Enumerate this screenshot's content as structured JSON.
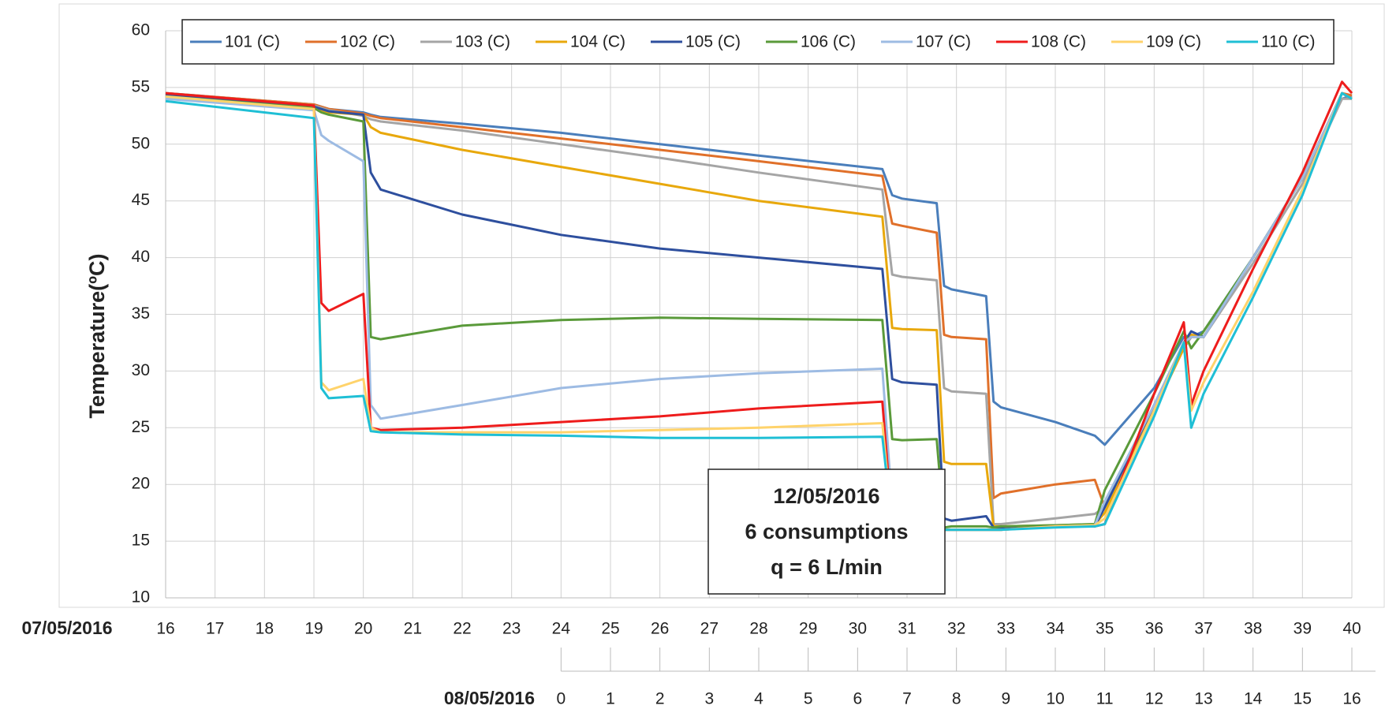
{
  "chart_data": {
    "type": "line",
    "ylabel": "Temperature(ºC)",
    "xlabel": "07/05/2016",
    "x2label": "08/05/2016",
    "annotation": [
      "12/05/2016",
      "6 consumptions",
      "q = 6 L/min"
    ],
    "x": [
      16,
      19,
      19.15,
      19.3,
      20,
      20.15,
      20.35,
      22,
      24,
      26,
      28,
      30.5,
      30.7,
      30.9,
      31.6,
      31.75,
      31.9,
      32.6,
      32.75,
      32.9,
      34,
      34.8,
      35,
      36,
      36.6,
      36.75,
      37,
      38,
      39,
      39.8,
      40
    ],
    "xlim": [
      16,
      40
    ],
    "xticks": [
      16,
      17,
      18,
      19,
      20,
      21,
      22,
      23,
      24,
      25,
      26,
      27,
      28,
      29,
      30,
      31,
      32,
      33,
      34,
      35,
      36,
      37,
      38,
      39,
      40
    ],
    "x2ticks": [
      {
        "value": 24,
        "label": "0"
      },
      {
        "value": 25,
        "label": "1"
      },
      {
        "value": 26,
        "label": "2"
      },
      {
        "value": 27,
        "label": "3"
      },
      {
        "value": 28,
        "label": "4"
      },
      {
        "value": 29,
        "label": "5"
      },
      {
        "value": 30,
        "label": "6"
      },
      {
        "value": 31,
        "label": "7"
      },
      {
        "value": 32,
        "label": "8"
      },
      {
        "value": 33,
        "label": "9"
      },
      {
        "value": 34,
        "label": "10"
      },
      {
        "value": 35,
        "label": "11"
      },
      {
        "value": 36,
        "label": "12"
      },
      {
        "value": 37,
        "label": "13"
      },
      {
        "value": 38,
        "label": "14"
      },
      {
        "value": 39,
        "label": "15"
      },
      {
        "value": 40,
        "label": "16"
      }
    ],
    "ylim": [
      10,
      60
    ],
    "yticks": [
      10,
      15,
      20,
      25,
      30,
      35,
      40,
      45,
      50,
      55,
      60
    ],
    "grid": true,
    "legend": "top",
    "series": [
      {
        "name": "101 (C)",
        "color": "#4a7ebb",
        "values": [
          54.5,
          53.5,
          53.3,
          53.1,
          52.8,
          52.6,
          52.4,
          51.8,
          51,
          50,
          49,
          47.8,
          45.5,
          45.2,
          44.8,
          37.5,
          37.2,
          36.6,
          27.3,
          26.8,
          25.5,
          24.3,
          23.5,
          28.5,
          33,
          33,
          33.5,
          40,
          47,
          54,
          54.3
        ]
      },
      {
        "name": "102 (C)",
        "color": "#e0702a",
        "values": [
          54.5,
          53.5,
          53.3,
          53.1,
          52.7,
          52.5,
          52.3,
          51.5,
          50.5,
          49.5,
          48.5,
          47.2,
          43,
          42.8,
          42.2,
          33.2,
          33,
          32.8,
          18.8,
          19.2,
          20,
          20.4,
          18,
          27,
          32,
          33,
          33,
          40,
          47,
          54.5,
          54.3
        ]
      },
      {
        "name": "103 (C)",
        "color": "#a5a5a5",
        "values": [
          54.3,
          53.4,
          53.2,
          53,
          52.5,
          52.2,
          52,
          51.2,
          50,
          48.8,
          47.5,
          46,
          38.5,
          38.3,
          38,
          28.5,
          28.2,
          28,
          16.5,
          16.5,
          17,
          17.4,
          18,
          26.5,
          32,
          33,
          33,
          39.5,
          46.5,
          54,
          54
        ]
      },
      {
        "name": "104 (C)",
        "color": "#e8a80c",
        "values": [
          54.4,
          53.3,
          53,
          52.8,
          52.6,
          51.5,
          51,
          49.5,
          48,
          46.5,
          45,
          43.6,
          33.8,
          33.7,
          33.6,
          22,
          21.8,
          21.8,
          16.3,
          16.3,
          16.4,
          16.5,
          17.5,
          26.5,
          32,
          33.2,
          33,
          40,
          47,
          54.5,
          54
        ]
      },
      {
        "name": "105 (C)",
        "color": "#2e4f9e",
        "values": [
          54.3,
          53.3,
          53.1,
          52.9,
          52.6,
          47.5,
          46,
          43.8,
          42,
          40.8,
          40,
          39,
          29.3,
          29,
          28.8,
          17,
          16.8,
          17.2,
          16.2,
          16.2,
          16.3,
          16.3,
          18,
          27,
          32.5,
          33.5,
          33,
          40,
          47,
          54.5,
          54
        ]
      },
      {
        "name": "106 (C)",
        "color": "#5a9a3a",
        "values": [
          54.2,
          53.2,
          52.8,
          52.6,
          52,
          33,
          32.8,
          34,
          34.5,
          34.7,
          34.6,
          34.5,
          24,
          23.9,
          24,
          16.2,
          16.3,
          16.3,
          16.2,
          16.3,
          16.4,
          16.5,
          19.5,
          28,
          33.5,
          32,
          33.5,
          40,
          47,
          54.5,
          54
        ]
      },
      {
        "name": "107 (C)",
        "color": "#9dbbe3",
        "values": [
          54,
          53,
          50.8,
          50.3,
          48.5,
          27,
          25.8,
          27,
          28.5,
          29.3,
          29.8,
          30.2,
          18,
          16.4,
          16.3,
          16,
          16,
          16,
          16,
          16,
          16.3,
          16.4,
          18.5,
          27,
          32.5,
          33,
          33,
          40,
          47,
          54.5,
          54
        ]
      },
      {
        "name": "108 (C)",
        "color": "#ee1c1c",
        "values": [
          54.5,
          53.4,
          36,
          35.3,
          36.8,
          25,
          24.8,
          25,
          25.5,
          26,
          26.7,
          27.3,
          16.5,
          16.4,
          16.3,
          16,
          16,
          16,
          16,
          16,
          16.3,
          16.3,
          16.5,
          28,
          34.3,
          27,
          30,
          39,
          47.5,
          55.5,
          54.5
        ]
      },
      {
        "name": "109 (C)",
        "color": "#ffd36b",
        "values": [
          54.2,
          53.1,
          29,
          28.3,
          29.3,
          25,
          24.6,
          24.6,
          24.6,
          24.8,
          25,
          25.4,
          16.2,
          16.1,
          16.1,
          16,
          16,
          16,
          16,
          16,
          16.3,
          16.4,
          17,
          26.5,
          32.5,
          26.5,
          29,
          37,
          46,
          54.5,
          54
        ]
      },
      {
        "name": "110 (C)",
        "color": "#1fbfd5",
        "values": [
          53.8,
          52.3,
          28.5,
          27.6,
          27.8,
          24.7,
          24.6,
          24.4,
          24.3,
          24.1,
          24.1,
          24.2,
          16.3,
          16.2,
          16.1,
          16,
          16,
          16,
          16,
          16,
          16.2,
          16.3,
          16.5,
          26,
          32.5,
          25,
          28,
          36.5,
          45.5,
          54.5,
          54
        ]
      }
    ]
  }
}
